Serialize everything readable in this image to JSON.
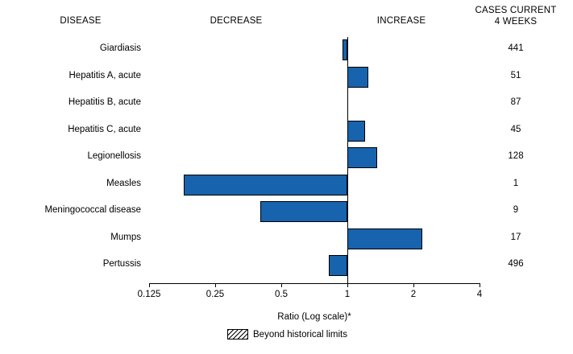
{
  "header": {
    "disease": "DISEASE",
    "decrease": "DECREASE",
    "increase": "INCREASE",
    "cases_line1": "CASES CURRENT",
    "cases_line2": "4 WEEKS"
  },
  "chart_data": {
    "type": "bar",
    "orientation": "horizontal-log-ratio",
    "baseline": 1,
    "title": "",
    "xlabel": "Ratio (Log scale)*",
    "xlim": [
      0.125,
      4
    ],
    "x_ticks": [
      0.125,
      0.25,
      0.5,
      1,
      2,
      4
    ],
    "x_tick_labels": [
      "0.125",
      "0.25",
      "0.5",
      "1",
      "2",
      "4"
    ],
    "grid": false,
    "bar_color": "#1763ae",
    "legend_position": "bottom",
    "legend": [
      {
        "label": "Beyond historical limits",
        "style": "hatched"
      }
    ],
    "rows": [
      {
        "disease": "Giardiasis",
        "ratio": 0.95,
        "cases": "441"
      },
      {
        "disease": "Hepatitis A, acute",
        "ratio": 1.25,
        "cases": "51"
      },
      {
        "disease": "Hepatitis B, acute",
        "ratio": 1.0,
        "cases": "87"
      },
      {
        "disease": "Hepatitis C, acute",
        "ratio": 1.2,
        "cases": "45"
      },
      {
        "disease": "Legionellosis",
        "ratio": 1.37,
        "cases": "128"
      },
      {
        "disease": "Measles",
        "ratio": 0.18,
        "cases": "1"
      },
      {
        "disease": "Meningococcal disease",
        "ratio": 0.4,
        "cases": "9"
      },
      {
        "disease": "Mumps",
        "ratio": 2.2,
        "cases": "17"
      },
      {
        "disease": "Pertussis",
        "ratio": 0.82,
        "cases": "496"
      }
    ]
  }
}
